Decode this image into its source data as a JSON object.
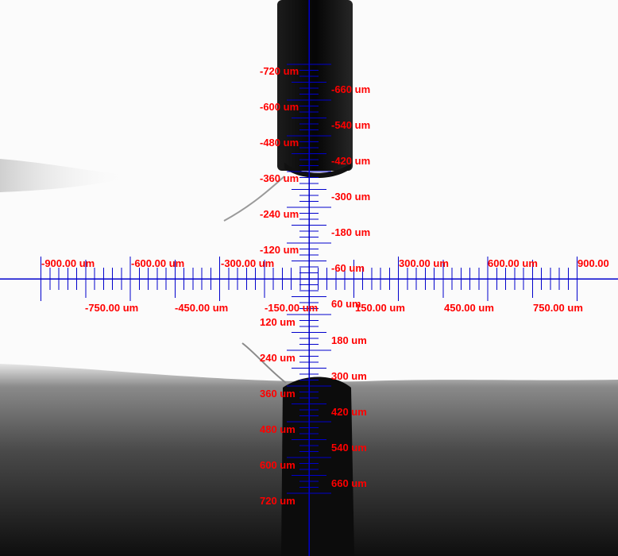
{
  "view": {
    "unit": "um",
    "colors": {
      "reticle": "#0000cc",
      "labels": "#ff0000",
      "needle": "#0c0c0c"
    }
  },
  "scale": {
    "x_top_labels": [
      "-900.00 um",
      "-600.00 um",
      "-300.00 um",
      "300.00 um",
      "600.00 um",
      "900.00"
    ],
    "x_bottom_labels": [
      "-750.00 um",
      "-450.00 um",
      "-150.00 um",
      "150.00 um",
      "450.00 um",
      "750.00 um"
    ],
    "y_left_labels": [
      "-720 um",
      "-600 um",
      "-480 um",
      "-360 um",
      "-240 um",
      "-120 um",
      "120 um",
      "240 um",
      "360 um",
      "480 um",
      "600 um",
      "720 um"
    ],
    "y_right_labels": [
      "-660 um",
      "-540 um",
      "-420 um",
      "-300 um",
      "-180 um",
      "-60 um",
      "60 um",
      "180 um",
      "300 um",
      "420 um",
      "540 um",
      "660 um"
    ]
  }
}
